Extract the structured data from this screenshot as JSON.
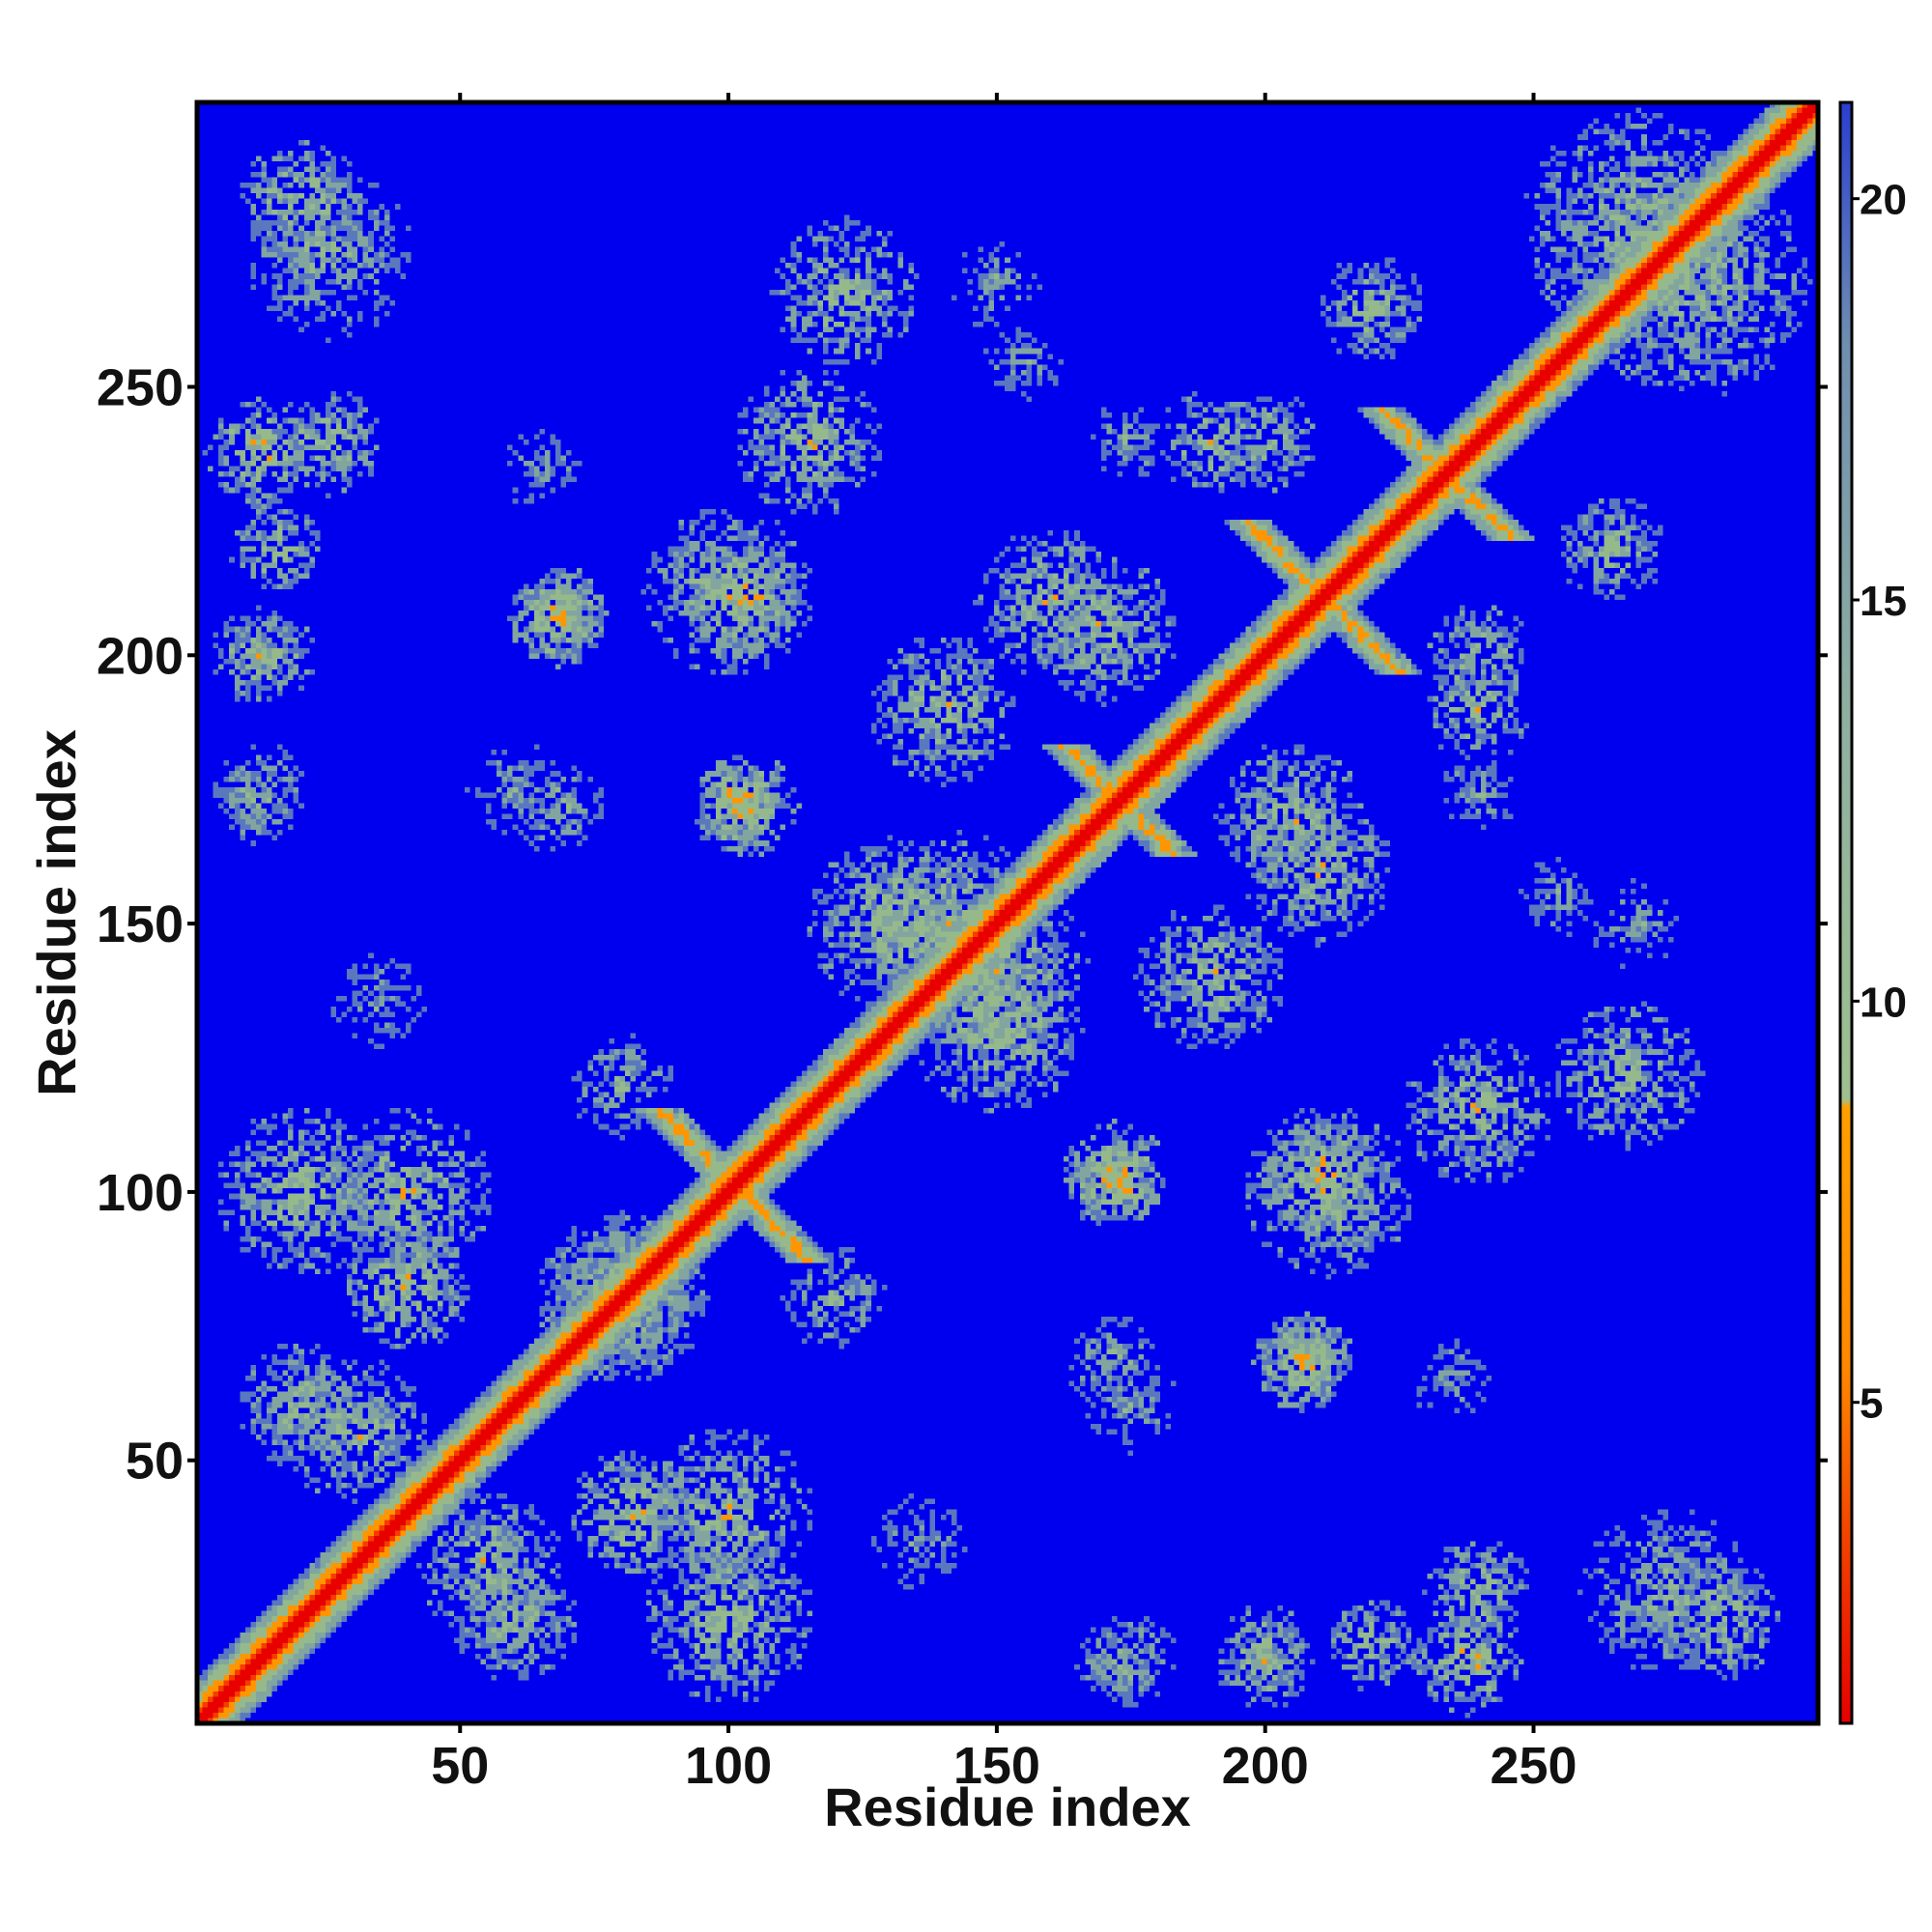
{
  "chart_data": {
    "type": "heatmap",
    "title": "",
    "xlabel": "Residue index",
    "ylabel": "Residue index",
    "xlim": [
      1,
      303
    ],
    "ylim": [
      1,
      303
    ],
    "x_ticks": [
      50,
      100,
      150,
      200,
      250
    ],
    "y_ticks": [
      50,
      100,
      150,
      200,
      250
    ],
    "x_tick_labels": [
      "50",
      "100",
      "150",
      "200",
      "250"
    ],
    "y_tick_labels": [
      "50",
      "100",
      "150",
      "200",
      "250"
    ],
    "colorbar": {
      "range": [
        1,
        21.2
      ],
      "ticks": [
        5,
        10,
        15,
        20
      ],
      "tick_labels": [
        "5",
        "10",
        "15",
        "20"
      ],
      "colors": {
        "low": "#e60000",
        "mid": "#ff9900",
        "upper_mid": "#9fbf8f",
        "high": "#0000ee"
      }
    },
    "diagonal": {
      "from": 1,
      "to": 303,
      "value": 2
    },
    "features": [
      {
        "kind": "cross",
        "center": [
          100,
          100
        ],
        "half_length": 14,
        "value": 6
      },
      {
        "kind": "cross",
        "center": [
          210,
          210
        ],
        "half_length": 14,
        "value": 6
      },
      {
        "kind": "cross",
        "center": [
          233,
          233
        ],
        "half_length": 12,
        "value": 6
      },
      {
        "kind": "cross",
        "center": [
          172,
          172
        ],
        "half_length": 10,
        "value": 6
      },
      {
        "kind": "blob",
        "center": [
          20,
          285
        ],
        "radius": 12,
        "value": 9
      },
      {
        "kind": "blob",
        "center": [
          12,
          238
        ],
        "radius": 10,
        "value": 8
      },
      {
        "kind": "blob",
        "center": [
          122,
          268
        ],
        "radius": 14,
        "value": 9
      },
      {
        "kind": "blob",
        "center": [
          68,
          207
        ],
        "radius": 9,
        "value": 8
      },
      {
        "kind": "blob",
        "center": [
          103,
          210
        ],
        "radius": 11,
        "value": 8
      },
      {
        "kind": "blob",
        "center": [
          170,
          205
        ],
        "radius": 14,
        "value": 9
      },
      {
        "kind": "blob",
        "center": [
          102,
          173
        ],
        "radius": 8,
        "value": 7
      },
      {
        "kind": "blob",
        "center": [
          140,
          150
        ],
        "radius": 18,
        "value": 9
      },
      {
        "kind": "blob",
        "center": [
          150,
          130
        ],
        "radius": 16,
        "value": 9
      },
      {
        "kind": "blob",
        "center": [
          210,
          160
        ],
        "radius": 14,
        "value": 9
      },
      {
        "kind": "blob",
        "center": [
          190,
          140
        ],
        "radius": 14,
        "value": 9
      },
      {
        "kind": "blob",
        "center": [
          240,
          115
        ],
        "radius": 14,
        "value": 9
      },
      {
        "kind": "blob",
        "center": [
          212,
          100
        ],
        "radius": 16,
        "value": 9
      },
      {
        "kind": "blob",
        "center": [
          172,
          103
        ],
        "radius": 10,
        "value": 8
      },
      {
        "kind": "blob",
        "center": [
          208,
          68
        ],
        "radius": 9,
        "value": 8
      },
      {
        "kind": "blob",
        "center": [
          172,
          68
        ],
        "radius": 9,
        "value": 10
      },
      {
        "kind": "blob",
        "center": [
          40,
          100
        ],
        "radius": 16,
        "value": 9
      },
      {
        "kind": "blob",
        "center": [
          20,
          60
        ],
        "radius": 12,
        "value": 9
      },
      {
        "kind": "blob",
        "center": [
          80,
          80
        ],
        "radius": 16,
        "value": 9
      },
      {
        "kind": "blob",
        "center": [
          55,
          30
        ],
        "radius": 14,
        "value": 9
      },
      {
        "kind": "blob",
        "center": [
          100,
          20
        ],
        "radius": 16,
        "value": 9
      },
      {
        "kind": "blob",
        "center": [
          82,
          40
        ],
        "radius": 12,
        "value": 8
      },
      {
        "kind": "blob",
        "center": [
          275,
          25
        ],
        "radius": 16,
        "value": 10
      },
      {
        "kind": "blob",
        "center": [
          240,
          25
        ],
        "radius": 10,
        "value": 9
      },
      {
        "kind": "blob",
        "center": [
          220,
          15
        ],
        "radius": 9,
        "value": 9
      },
      {
        "kind": "blob",
        "center": [
          200,
          15
        ],
        "radius": 8,
        "value": 9
      },
      {
        "kind": "blob",
        "center": [
          172,
          12
        ],
        "radius": 8,
        "value": 10
      },
      {
        "kind": "blob",
        "center": [
          270,
          280
        ],
        "radius": 22,
        "value": 9
      },
      {
        "kind": "blob",
        "center": [
          190,
          240
        ],
        "radius": 10,
        "value": 9
      },
      {
        "kind": "blob",
        "center": [
          220,
          265
        ],
        "radius": 10,
        "value": 9
      },
      {
        "kind": "blob",
        "center": [
          240,
          200
        ],
        "radius": 10,
        "value": 9
      },
      {
        "kind": "blob",
        "center": [
          12,
          200
        ],
        "radius": 9,
        "value": 9
      },
      {
        "kind": "blob",
        "center": [
          12,
          175
        ],
        "radius": 9,
        "value": 10
      },
      {
        "kind": "blob",
        "center": [
          60,
          175
        ],
        "radius": 9,
        "value": 11
      },
      {
        "kind": "blob",
        "center": [
          150,
          270
        ],
        "radius": 9,
        "value": 11
      },
      {
        "kind": "blob",
        "center": [
          175,
          240
        ],
        "radius": 8,
        "value": 11
      },
      {
        "kind": "blob",
        "center": [
          255,
          155
        ],
        "radius": 8,
        "value": 11
      },
      {
        "kind": "blob",
        "center": [
          235,
          65
        ],
        "radius": 8,
        "value": 11
      },
      {
        "kind": "blob",
        "center": [
          120,
          80
        ],
        "radius": 10,
        "value": 10
      },
      {
        "kind": "blob",
        "center": [
          35,
          135
        ],
        "radius": 10,
        "value": 11
      }
    ]
  }
}
